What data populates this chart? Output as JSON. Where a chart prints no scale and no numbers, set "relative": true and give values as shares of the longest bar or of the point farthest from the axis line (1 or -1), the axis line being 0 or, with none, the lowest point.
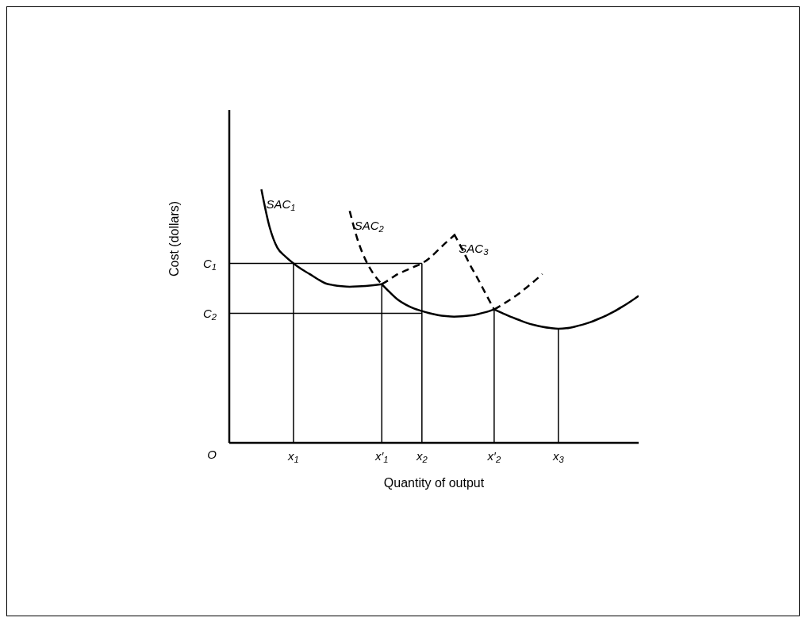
{
  "chart_data": {
    "type": "line",
    "relative": true,
    "xlabel": "Quantity of output",
    "ylabel": "Cost (dollars)",
    "marker": "none",
    "categories": [
      null,
      null,
      null,
      null,
      null,
      null,
      null,
      null,
      "x$_{1}$",
      null,
      null,
      null,
      null,
      null,
      null,
      null,
      null,
      null,
      null,
      "x′$_{1}$",
      null,
      null,
      null,
      null,
      "x$_{2}$",
      null,
      null,
      null,
      null,
      null,
      null,
      null,
      null,
      "x′$_{2}$",
      null,
      null,
      null,
      null,
      null,
      null,
      null,
      "x$_{3}$",
      null,
      null,
      null,
      null,
      null,
      null,
      null,
      null,
      null,
      null
    ],
    "annotations": [
      "O"
    ],
    "ref_lines": [
      {
        "axis": "y",
        "value": 0.708,
        "label": "C$_{1}$"
      },
      {
        "axis": "y",
        "value": 0.511,
        "label": "C$_{2}$"
      },
      {
        "axis": "x",
        "value": "x$_{1}$"
      },
      {
        "axis": "x",
        "value": "x′$_{1}$"
      },
      {
        "axis": "x",
        "value": "x$_{2}$"
      },
      {
        "axis": "x",
        "value": "x′$_{2}$"
      },
      {
        "axis": "x",
        "value": "x$_{3}$"
      }
    ],
    "series": [
      {
        "name": "SAC$_{1}$",
        "color": "#000000",
        "line_style": "solid",
        "values": [
          null,
          null,
          null,
          null,
          1.0,
          0.854,
          0.769,
          0.735,
          0.708,
          0.685,
          0.666,
          0.646,
          0.629,
          0.622,
          0.618,
          0.616,
          0.617,
          0.619,
          0.622,
          0.626,
          null,
          null,
          null,
          null,
          null,
          null,
          null,
          null,
          null,
          null,
          null,
          null,
          null,
          null,
          null,
          null,
          null,
          null,
          null,
          null,
          null,
          null,
          null,
          null,
          null,
          null,
          null,
          null,
          null,
          null,
          null,
          null
        ]
      },
      {
        "color": "#000000",
        "line_style": "dashed",
        "values": [
          null,
          null,
          null,
          null,
          null,
          null,
          null,
          null,
          null,
          null,
          null,
          null,
          null,
          null,
          null,
          null,
          null,
          null,
          null,
          0.626,
          0.645,
          0.666,
          0.68,
          0.694,
          0.708,
          0.73,
          0.76,
          0.79,
          0.818,
          null,
          null,
          null,
          null,
          null,
          null,
          null,
          null,
          null,
          null,
          null,
          null,
          null,
          null,
          null,
          null,
          null,
          null,
          null,
          null,
          null,
          null,
          null
        ]
      },
      {
        "name": "SAC$_{2}$",
        "color": "#000000",
        "line_style": "dashed",
        "values": [
          null,
          null,
          null,
          null,
          null,
          null,
          null,
          null,
          null,
          null,
          null,
          null,
          null,
          null,
          null,
          0.915,
          0.8,
          0.72,
          0.665,
          0.626,
          null,
          null,
          null,
          null,
          null,
          null,
          null,
          null,
          null,
          null,
          null,
          null,
          null,
          null,
          null,
          null,
          null,
          null,
          null,
          null,
          null,
          null,
          null,
          null,
          null,
          null,
          null,
          null,
          null,
          null,
          null,
          null
        ]
      },
      {
        "color": "#000000",
        "line_style": "solid",
        "values": [
          null,
          null,
          null,
          null,
          null,
          null,
          null,
          null,
          null,
          null,
          null,
          null,
          null,
          null,
          null,
          null,
          null,
          null,
          null,
          0.626,
          0.594,
          0.565,
          0.545,
          0.53,
          0.52,
          0.511,
          0.504,
          0.5,
          0.498,
          0.499,
          0.502,
          0.508,
          0.516,
          0.526,
          null,
          null,
          null,
          null,
          null,
          null,
          null,
          null,
          null,
          null,
          null,
          null,
          null,
          null,
          null,
          null,
          null,
          null
        ]
      },
      {
        "color": "#000000",
        "line_style": "dashed",
        "values": [
          null,
          null,
          null,
          null,
          null,
          null,
          null,
          null,
          null,
          null,
          null,
          null,
          null,
          null,
          null,
          null,
          null,
          null,
          null,
          null,
          null,
          null,
          null,
          null,
          null,
          null,
          null,
          null,
          null,
          null,
          null,
          null,
          null,
          0.526,
          0.545,
          0.565,
          0.587,
          0.612,
          0.638,
          0.666,
          null,
          null,
          null,
          null,
          null,
          null,
          null,
          null,
          null,
          null,
          null,
          null
        ]
      },
      {
        "name": "SAC$_{3}$",
        "color": "#000000",
        "line_style": "dashed",
        "values": [
          null,
          null,
          null,
          null,
          null,
          null,
          null,
          null,
          null,
          null,
          null,
          null,
          null,
          null,
          null,
          null,
          null,
          null,
          null,
          null,
          null,
          null,
          null,
          null,
          null,
          null,
          null,
          null,
          0.824,
          0.765,
          0.702,
          0.645,
          0.585,
          0.526,
          null,
          null,
          null,
          null,
          null,
          null,
          null,
          null,
          null,
          null,
          null,
          null,
          null,
          null,
          null,
          null,
          null,
          null
        ]
      },
      {
        "color": "#000000",
        "line_style": "solid",
        "values": [
          null,
          null,
          null,
          null,
          null,
          null,
          null,
          null,
          null,
          null,
          null,
          null,
          null,
          null,
          null,
          null,
          null,
          null,
          null,
          null,
          null,
          null,
          null,
          null,
          null,
          null,
          null,
          null,
          null,
          null,
          null,
          null,
          null,
          0.526,
          0.512,
          0.498,
          0.486,
          0.474,
          0.465,
          0.458,
          0.453,
          0.45,
          0.452,
          0.458,
          0.466,
          0.476,
          0.489,
          0.503,
          0.519,
          0.538,
          0.558,
          0.58
        ]
      }
    ]
  }
}
